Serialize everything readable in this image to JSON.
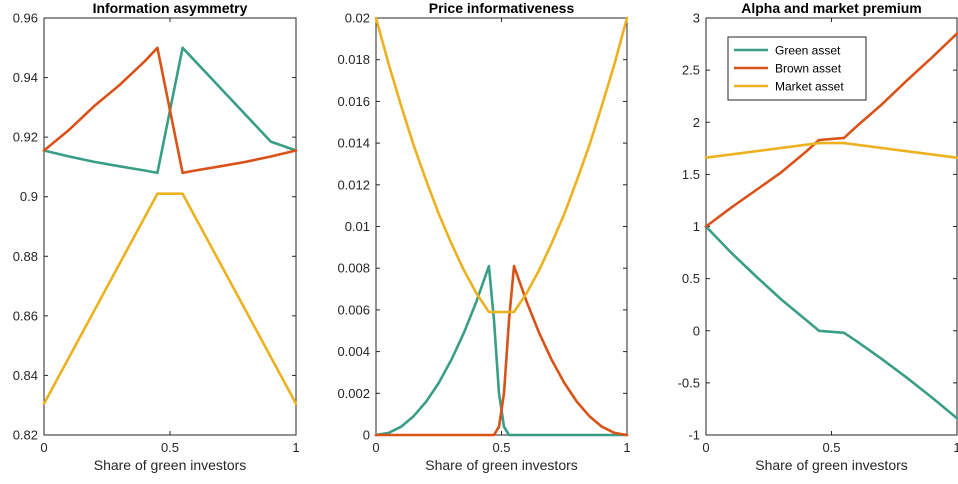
{
  "chart_data": [
    {
      "type": "line",
      "title": "Information asymmetry",
      "xlabel": "Share of green investors",
      "ylabel": "",
      "xlim": [
        0,
        1
      ],
      "ylim": [
        0.82,
        0.96
      ],
      "xticks": [
        0,
        0.5,
        1
      ],
      "xtick_labels": [
        "0",
        "0.5",
        "1"
      ],
      "yticks": [
        0.82,
        0.84,
        0.86,
        0.88,
        0.9,
        0.92,
        0.94,
        0.96
      ],
      "ytick_labels": [
        "0.82",
        "0.84",
        "0.86",
        "0.88",
        "0.9",
        "0.92",
        "0.94",
        "0.96"
      ],
      "grid": false,
      "series": [
        {
          "color": "#3a9e86",
          "x": [
            0,
            0.1,
            0.2,
            0.3,
            0.4,
            0.45,
            0.55,
            0.6,
            0.7,
            0.8,
            0.9,
            1
          ],
          "y": [
            0.9155,
            0.9135,
            0.9117,
            0.9102,
            0.9088,
            0.908,
            0.95,
            0.9455,
            0.9365,
            0.9275,
            0.9185,
            0.9155
          ]
        },
        {
          "color": "#d95319",
          "x": [
            0,
            0.1,
            0.2,
            0.3,
            0.4,
            0.45,
            0.55,
            0.6,
            0.7,
            0.8,
            0.9,
            1
          ],
          "y": [
            0.9155,
            0.9225,
            0.9305,
            0.9375,
            0.9455,
            0.95,
            0.908,
            0.9088,
            0.9102,
            0.9117,
            0.9135,
            0.9155
          ]
        },
        {
          "color": "#edb120",
          "x": [
            0,
            0.45,
            0.55,
            1
          ],
          "y": [
            0.8305,
            0.901,
            0.901,
            0.8305
          ]
        }
      ]
    },
    {
      "type": "line",
      "title": "Price informativeness",
      "xlabel": "Share of green investors",
      "ylabel": "",
      "xlim": [
        0,
        1
      ],
      "ylim": [
        0,
        0.02
      ],
      "xticks": [
        0,
        0.5,
        1
      ],
      "xtick_labels": [
        "0",
        "0.5",
        "1"
      ],
      "yticks": [
        0,
        0.002,
        0.004,
        0.006,
        0.008,
        0.01,
        0.012,
        0.014,
        0.016,
        0.018,
        0.02
      ],
      "ytick_labels": [
        "0",
        "0.002",
        "0.004",
        "0.006",
        "0.008",
        "0.01",
        "0.012",
        "0.014",
        "0.016",
        "0.018",
        "0.02"
      ],
      "grid": false,
      "series": [
        {
          "color": "#3a9e86",
          "x": [
            0,
            0.05,
            0.1,
            0.15,
            0.2,
            0.25,
            0.3,
            0.35,
            0.4,
            0.45,
            0.47,
            0.49,
            0.51,
            0.53,
            0.55,
            0.6,
            1
          ],
          "y": [
            0,
            0.0001,
            0.0004,
            0.0009,
            0.0016,
            0.0025,
            0.0036,
            0.0049,
            0.0064,
            0.0081,
            0.0055,
            0.002,
            0.0004,
            0,
            0,
            0,
            0
          ]
        },
        {
          "color": "#d95319",
          "x": [
            0,
            0.4,
            0.45,
            0.47,
            0.49,
            0.51,
            0.53,
            0.55,
            0.6,
            0.65,
            0.7,
            0.75,
            0.8,
            0.85,
            0.9,
            0.95,
            1
          ],
          "y": [
            0,
            0,
            0,
            0,
            0.0004,
            0.002,
            0.0055,
            0.0081,
            0.0064,
            0.0049,
            0.0036,
            0.0025,
            0.0016,
            0.0009,
            0.0004,
            0.0001,
            0
          ]
        },
        {
          "color": "#edb120",
          "x": [
            0,
            0.05,
            0.1,
            0.15,
            0.2,
            0.25,
            0.3,
            0.35,
            0.4,
            0.45,
            0.5,
            0.55,
            0.6,
            0.65,
            0.7,
            0.75,
            0.8,
            0.85,
            0.9,
            0.95,
            1
          ],
          "y": [
            0.02,
            0.0178,
            0.0158,
            0.0139,
            0.0122,
            0.0106,
            0.0092,
            0.0079,
            0.0068,
            0.0059,
            0.0059,
            0.0059,
            0.0068,
            0.0079,
            0.0092,
            0.0106,
            0.0122,
            0.0139,
            0.0158,
            0.0178,
            0.02
          ]
        }
      ]
    },
    {
      "type": "line",
      "title": "Alpha and market premium",
      "xlabel": "Share of green investors",
      "ylabel": "",
      "xlim": [
        0,
        1
      ],
      "ylim": [
        -1,
        3
      ],
      "xticks": [
        0,
        0.5,
        1
      ],
      "xtick_labels": [
        "0",
        "0.5",
        "1"
      ],
      "yticks": [
        -1,
        -0.5,
        0,
        0.5,
        1,
        1.5,
        2,
        2.5,
        3
      ],
      "ytick_labels": [
        "-1",
        "-0.5",
        "0",
        "0.5",
        "1",
        "1.5",
        "2",
        "2.5",
        "3"
      ],
      "grid": false,
      "legend": {
        "position": "top-left"
      },
      "series": [
        {
          "name": "Green asset",
          "color": "#3a9e86",
          "x": [
            0,
            0.1,
            0.2,
            0.3,
            0.4,
            0.45,
            0.55,
            0.6,
            0.7,
            0.8,
            0.9,
            1
          ],
          "y": [
            1,
            0.75,
            0.52,
            0.3,
            0.1,
            0,
            -0.02,
            -0.1,
            -0.27,
            -0.45,
            -0.64,
            -0.84
          ]
        },
        {
          "name": "Brown asset",
          "color": "#d95319",
          "x": [
            0,
            0.1,
            0.2,
            0.3,
            0.4,
            0.45,
            0.55,
            0.6,
            0.7,
            0.8,
            0.9,
            1
          ],
          "y": [
            1,
            1.18,
            1.35,
            1.52,
            1.72,
            1.83,
            1.85,
            1.96,
            2.17,
            2.4,
            2.62,
            2.85
          ]
        },
        {
          "name": "Market asset",
          "color": "#edb120",
          "x": [
            0,
            0.45,
            0.55,
            1
          ],
          "y": [
            1.66,
            1.8,
            1.8,
            1.66
          ]
        }
      ]
    }
  ]
}
